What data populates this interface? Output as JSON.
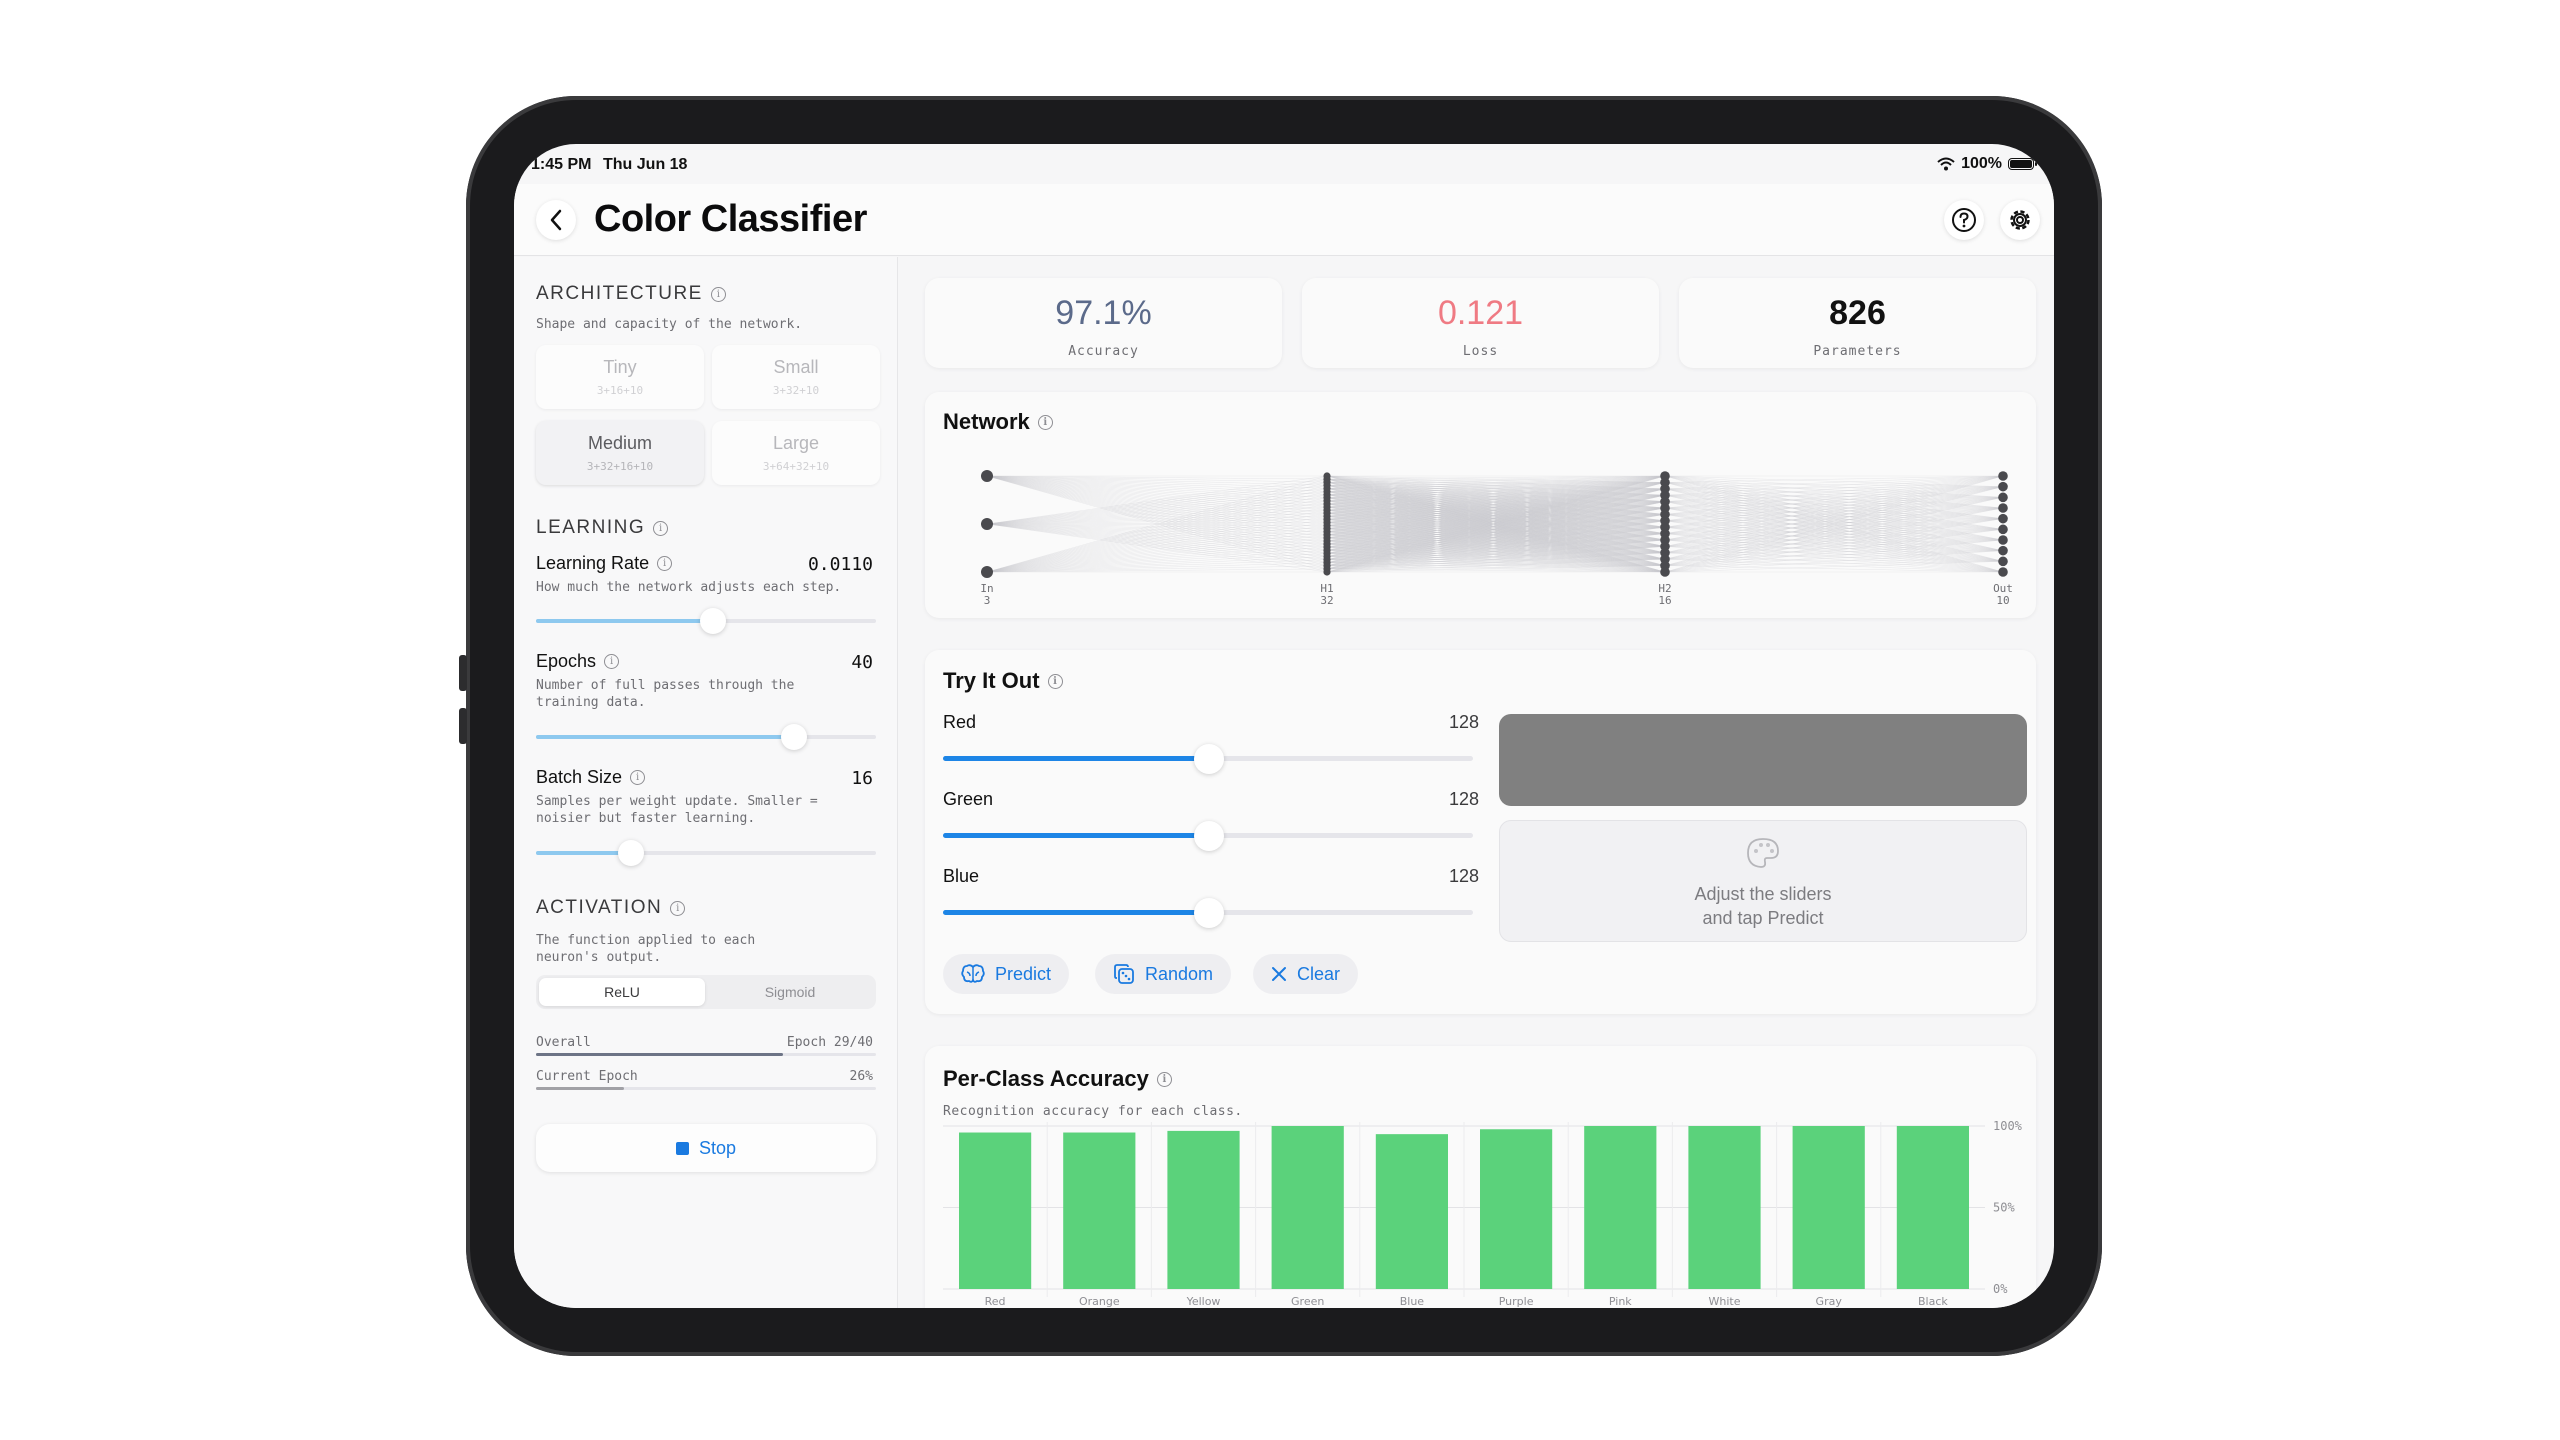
{
  "status_bar": {
    "time": "1:45 PM",
    "date": "Thu Jun 18",
    "battery": "100%"
  },
  "nav": {
    "title": "Color Classifier",
    "back_icon": "chevron-left-icon",
    "help_icon": "question-circle-icon",
    "settings_icon": "gear-icon"
  },
  "sidebar": {
    "architecture": {
      "title": "ARCHITECTURE",
      "description": "Shape and capacity of the network.",
      "options": [
        {
          "name": "Tiny",
          "sub": "3+16+10",
          "selected": false
        },
        {
          "name": "Small",
          "sub": "3+32+10",
          "selected": false
        },
        {
          "name": "Medium",
          "sub": "3+32+16+10",
          "selected": true
        },
        {
          "name": "Large",
          "sub": "3+64+32+10",
          "selected": false
        }
      ]
    },
    "learning": {
      "title": "LEARNING",
      "params": [
        {
          "name": "Learning Rate",
          "value": "0.0110",
          "description": "How much the network adjusts each step.",
          "fraction": 0.52
        },
        {
          "name": "Epochs",
          "value": "40",
          "description": "Number of full passes through the training data.",
          "fraction": 0.76
        },
        {
          "name": "Batch Size",
          "value": "16",
          "description": "Samples per weight update. Smaller = noisier but faster learning.",
          "fraction": 0.28
        }
      ]
    },
    "activation": {
      "title": "ACTIVATION",
      "description": "The function applied to each neuron's output.",
      "options": [
        "ReLU",
        "Sigmoid"
      ],
      "selected": "ReLU"
    },
    "progress": {
      "overall_label": "Overall",
      "overall_value": "Epoch 29/40",
      "overall_fraction": 0.725,
      "epoch_label": "Current Epoch",
      "epoch_value": "26%",
      "epoch_fraction": 0.26
    },
    "stop_label": "Stop"
  },
  "metrics": [
    {
      "value": "97.1%",
      "label": "Accuracy",
      "color": "#5b6a8a"
    },
    {
      "value": "0.121",
      "label": "Loss",
      "color": "#ef7a83"
    },
    {
      "value": "826",
      "label": "Parameters",
      "color": "#111111"
    }
  ],
  "network": {
    "title": "Network",
    "layers": [
      {
        "name": "In",
        "size": "3"
      },
      {
        "name": "H1",
        "size": "32"
      },
      {
        "name": "H2",
        "size": "16"
      },
      {
        "name": "Out",
        "size": "10"
      }
    ]
  },
  "try_it_out": {
    "title": "Try It Out",
    "sliders": [
      {
        "name": "Red",
        "value": "128",
        "fraction": 0.502
      },
      {
        "name": "Green",
        "value": "128",
        "fraction": 0.502
      },
      {
        "name": "Blue",
        "value": "128",
        "fraction": 0.502
      }
    ],
    "preview_color": "#808080",
    "placeholder_line1": "Adjust the sliders",
    "placeholder_line2": "and tap Predict",
    "palette_icon": "palette-icon",
    "buttons": [
      {
        "label": "Predict",
        "icon": "brain-icon"
      },
      {
        "label": "Random",
        "icon": "dice-icon"
      },
      {
        "label": "Clear",
        "icon": "close-icon"
      }
    ]
  },
  "per_class": {
    "title": "Per-Class Accuracy",
    "description": "Recognition accuracy for each class.",
    "chart_data": {
      "type": "bar",
      "categories": [
        "Red",
        "Orange",
        "Yellow",
        "Green",
        "Blue",
        "Purple",
        "Pink",
        "White",
        "Gray",
        "Black"
      ],
      "values": [
        96,
        96,
        97,
        100,
        95,
        98,
        100,
        100,
        100,
        100
      ],
      "ylim": [
        0,
        100
      ],
      "ytick_labels": [
        "100%",
        "50%",
        "0%"
      ],
      "bar_color": "#5bd27b"
    }
  }
}
